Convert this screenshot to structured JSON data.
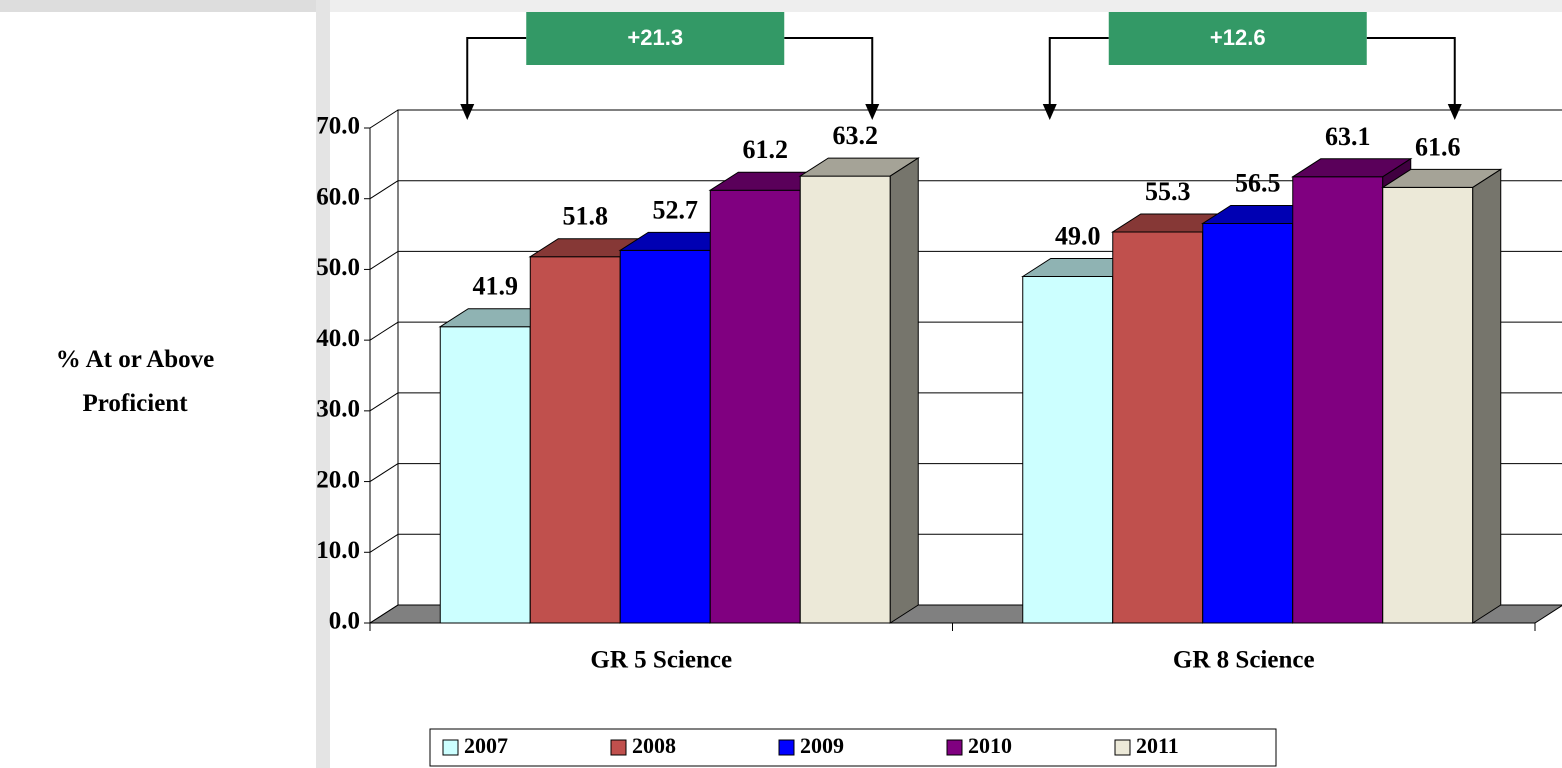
{
  "chart_data": {
    "type": "bar3d",
    "y_label": "% At or Above Proficient",
    "categories": [
      "GR 5 Science",
      "GR 8 Science"
    ],
    "series": [
      {
        "name": "2007",
        "color": "#ccffff",
        "values": [
          41.9,
          49.0
        ],
        "value_labels": [
          "41.9",
          "49.0"
        ]
      },
      {
        "name": "2008",
        "color": "#c0504d",
        "values": [
          51.8,
          55.3
        ],
        "value_labels": [
          "51.8",
          "55.3"
        ]
      },
      {
        "name": "2009",
        "color": "#0000ff",
        "values": [
          52.7,
          56.5
        ],
        "value_labels": [
          "52.7",
          "56.5"
        ]
      },
      {
        "name": "2010",
        "color": "#800080",
        "values": [
          61.2,
          63.1
        ],
        "value_labels": [
          "61.2",
          "63.1"
        ]
      },
      {
        "name": "2011",
        "color": "#ece9d8",
        "values": [
          63.2,
          61.6
        ],
        "value_labels": [
          "63.2",
          "61.6"
        ]
      }
    ],
    "ylim": [
      0,
      70
    ],
    "yticks": [
      {
        "value": 0,
        "label": "0.0"
      },
      {
        "value": 10,
        "label": "10.0"
      },
      {
        "value": 20,
        "label": "20.0"
      },
      {
        "value": 30,
        "label": "30.0"
      },
      {
        "value": 40,
        "label": "40.0"
      },
      {
        "value": 50,
        "label": "50.0"
      },
      {
        "value": 60,
        "label": "60.0"
      },
      {
        "value": 70,
        "label": "70.0"
      }
    ],
    "grid": true,
    "annotations": [
      {
        "text": "+21.3"
      },
      {
        "text": "+12.6"
      }
    ],
    "annotation_color": "#339966"
  }
}
